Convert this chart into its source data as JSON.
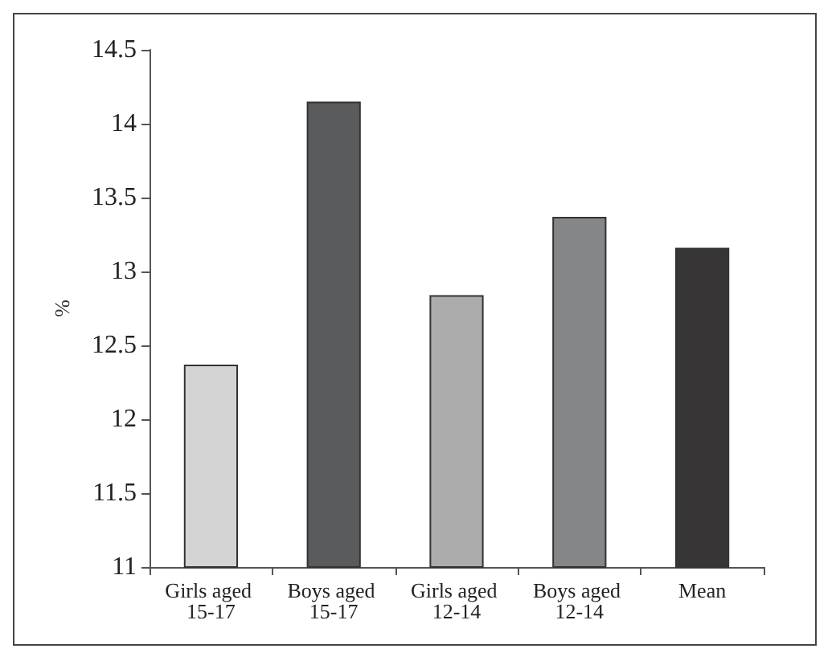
{
  "chart_data": {
    "type": "bar",
    "ylabel": "%",
    "categories": [
      "Girls aged 15-17",
      "Boys aged 15-17",
      "Girls aged 12-14",
      "Boys aged 12-14",
      "Mean"
    ],
    "values": [
      12.37,
      14.15,
      12.84,
      13.37,
      13.16
    ],
    "colors": [
      "#d4d4d4",
      "#5a5b5d",
      "#acacac",
      "#858687",
      "#373536"
    ],
    "ylim": [
      11,
      14.5
    ],
    "yticks": [
      11,
      11.5,
      12,
      12.5,
      13,
      13.5,
      14,
      14.5
    ],
    "grid": false
  }
}
